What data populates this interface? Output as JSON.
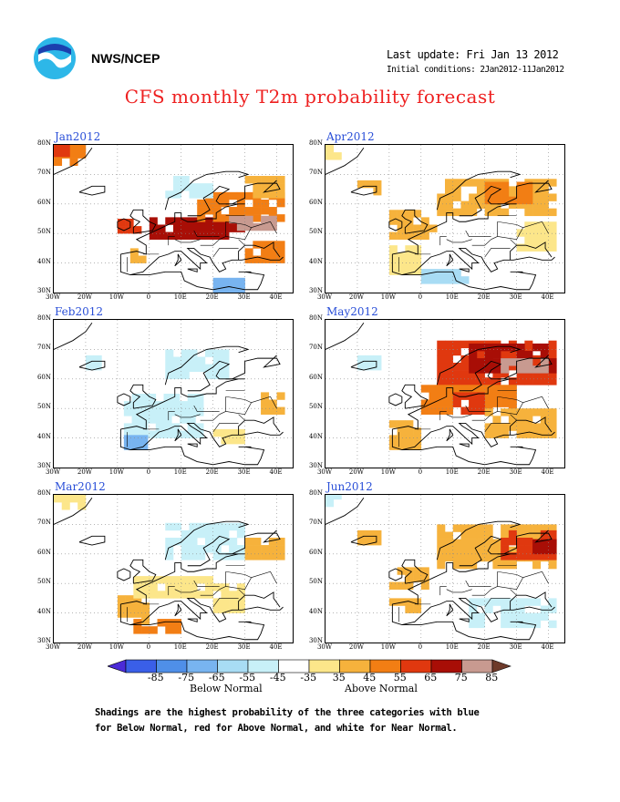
{
  "header": {
    "agency": "NWS/NCEP",
    "last_update": "Last update: Fri Jan 13 2012",
    "initial_conditions": "Initial conditions: 2Jan2012-11Jan2012",
    "title": "CFS monthly T2m probability forecast",
    "logo_colors": {
      "circle": "#2db7e8",
      "bird": "#ffffff",
      "inner": "#1b3fae"
    }
  },
  "axes": {
    "lat_labels": [
      "80N",
      "70N",
      "60N",
      "50N",
      "40N",
      "30N"
    ],
    "lon_labels": [
      "30W",
      "20W",
      "10W",
      "0",
      "10E",
      "20E",
      "30E",
      "40E"
    ]
  },
  "panels": [
    {
      "label": "Jan2012",
      "month_index": 0,
      "regions": [
        {
          "lon": [
            -30,
            -22
          ],
          "lat": [
            73,
            79
          ],
          "cat": "55"
        },
        {
          "lon": [
            -30,
            -25
          ],
          "lat": [
            76,
            79
          ],
          "cat": "65"
        },
        {
          "lon": [
            -10,
            0
          ],
          "lat": [
            50,
            53
          ],
          "cat": "65"
        },
        {
          "lon": [
            0,
            30
          ],
          "lat": [
            48,
            54
          ],
          "cat": "75"
        },
        {
          "lon": [
            15,
            42
          ],
          "lat": [
            54,
            62
          ],
          "cat": "55"
        },
        {
          "lon": [
            25,
            40
          ],
          "lat": [
            51,
            55
          ],
          "cat": "85"
        },
        {
          "lon": [
            5,
            20
          ],
          "lat": [
            62,
            68
          ],
          "cat": "-35"
        },
        {
          "lon": [
            -6,
            -2
          ],
          "lat": [
            40,
            44
          ],
          "cat": "45"
        },
        {
          "lon": [
            30,
            42
          ],
          "lat": [
            40,
            46
          ],
          "cat": "55"
        },
        {
          "lon": [
            30,
            42
          ],
          "lat": [
            62,
            68
          ],
          "cat": "45"
        },
        {
          "lon": [
            20,
            30
          ],
          "lat": [
            30,
            33
          ],
          "cat": "-55"
        }
      ]
    },
    {
      "label": "Feb2012",
      "month_index": 1,
      "regions": [
        {
          "lon": [
            -8,
            15
          ],
          "lat": [
            40,
            55
          ],
          "cat": "-35"
        },
        {
          "lon": [
            -8,
            -2
          ],
          "lat": [
            36,
            41
          ],
          "cat": "-55"
        },
        {
          "lon": [
            5,
            25
          ],
          "lat": [
            60,
            70
          ],
          "cat": "-35"
        },
        {
          "lon": [
            -20,
            -15
          ],
          "lat": [
            63,
            66
          ],
          "cat": "-35"
        },
        {
          "lon": [
            35,
            42
          ],
          "lat": [
            48,
            54
          ],
          "cat": "45"
        },
        {
          "lon": [
            20,
            30
          ],
          "lat": [
            38,
            42
          ],
          "cat": "35"
        }
      ]
    },
    {
      "label": "Mar2012",
      "month_index": 2,
      "regions": [
        {
          "lon": [
            -30,
            -22
          ],
          "lat": [
            75,
            79
          ],
          "cat": "35"
        },
        {
          "lon": [
            5,
            30
          ],
          "lat": [
            58,
            70
          ],
          "cat": "-35"
        },
        {
          "lon": [
            -10,
            0
          ],
          "lat": [
            36,
            45
          ],
          "cat": "45"
        },
        {
          "lon": [
            -5,
            10
          ],
          "lat": [
            33,
            37
          ],
          "cat": "55"
        },
        {
          "lon": [
            30,
            42
          ],
          "lat": [
            58,
            64
          ],
          "cat": "45"
        },
        {
          "lon": [
            -5,
            20
          ],
          "lat": [
            45,
            52
          ],
          "cat": "35"
        },
        {
          "lon": [
            20,
            30
          ],
          "lat": [
            40,
            48
          ],
          "cat": "35"
        }
      ]
    },
    {
      "label": "Apr2012",
      "month_index": 3,
      "regions": [
        {
          "lon": [
            -30,
            -25
          ],
          "lat": [
            75,
            79
          ],
          "cat": "35"
        },
        {
          "lon": [
            5,
            42
          ],
          "lat": [
            56,
            68
          ],
          "cat": "45"
        },
        {
          "lon": [
            20,
            35
          ],
          "lat": [
            60,
            67
          ],
          "cat": "55"
        },
        {
          "lon": [
            -10,
            5
          ],
          "lat": [
            48,
            56
          ],
          "cat": "45"
        },
        {
          "lon": [
            -20,
            -14
          ],
          "lat": [
            63,
            66
          ],
          "cat": "45"
        },
        {
          "lon": [
            0,
            15
          ],
          "lat": [
            33,
            38
          ],
          "cat": "-45"
        },
        {
          "lon": [
            -10,
            0
          ],
          "lat": [
            36,
            44
          ],
          "cat": "35"
        },
        {
          "lon": [
            30,
            42
          ],
          "lat": [
            44,
            52
          ],
          "cat": "35"
        }
      ]
    },
    {
      "label": "May2012",
      "month_index": 4,
      "regions": [
        {
          "lon": [
            5,
            42
          ],
          "lat": [
            58,
            72
          ],
          "cat": "65"
        },
        {
          "lon": [
            15,
            42
          ],
          "lat": [
            62,
            70
          ],
          "cat": "75"
        },
        {
          "lon": [
            25,
            40
          ],
          "lat": [
            62,
            67
          ],
          "cat": "85"
        },
        {
          "lon": [
            0,
            30
          ],
          "lat": [
            48,
            58
          ],
          "cat": "55"
        },
        {
          "lon": [
            10,
            20
          ],
          "lat": [
            48,
            54
          ],
          "cat": "65"
        },
        {
          "lon": [
            -10,
            0
          ],
          "lat": [
            36,
            44
          ],
          "cat": "45"
        },
        {
          "lon": [
            20,
            42
          ],
          "lat": [
            40,
            48
          ],
          "cat": "45"
        },
        {
          "lon": [
            -20,
            -14
          ],
          "lat": [
            63,
            66
          ],
          "cat": "-35"
        }
      ]
    },
    {
      "label": "Jun2012",
      "month_index": 5,
      "regions": [
        {
          "lon": [
            -30,
            -25
          ],
          "lat": [
            76,
            79
          ],
          "cat": "-35"
        },
        {
          "lon": [
            5,
            42
          ],
          "lat": [
            55,
            70
          ],
          "cat": "45"
        },
        {
          "lon": [
            25,
            42
          ],
          "lat": [
            58,
            68
          ],
          "cat": "65"
        },
        {
          "lon": [
            35,
            42
          ],
          "lat": [
            60,
            65
          ],
          "cat": "75"
        },
        {
          "lon": [
            -10,
            5
          ],
          "lat": [
            48,
            55
          ],
          "cat": "45"
        },
        {
          "lon": [
            -10,
            0
          ],
          "lat": [
            40,
            45
          ],
          "cat": "45"
        },
        {
          "lon": [
            15,
            42
          ],
          "lat": [
            35,
            45
          ],
          "cat": "-35"
        },
        {
          "lon": [
            -20,
            -14
          ],
          "lat": [
            63,
            66
          ],
          "cat": "45"
        }
      ]
    }
  ],
  "legend": {
    "ticks": [
      "-85",
      "-75",
      "-65",
      "-55",
      "-45",
      "-35",
      "35",
      "45",
      "55",
      "65",
      "75",
      "85"
    ],
    "below_label": "Below Normal",
    "above_label": "Above Normal",
    "colors": [
      "#4b2bd8",
      "#3a5fe8",
      "#4f8fe8",
      "#78b4f0",
      "#a8dcf4",
      "#c8f0f8",
      "#ffffff",
      "#fce68a",
      "#f6b23c",
      "#f27e14",
      "#e0380f",
      "#a80e06",
      "#c89a90",
      "#6e3a2a"
    ]
  },
  "footnote": {
    "line1": "Shadings are the highest probability of the three categories with blue",
    "line2": "for Below Normal, red for Above Normal, and white for Near Normal."
  }
}
